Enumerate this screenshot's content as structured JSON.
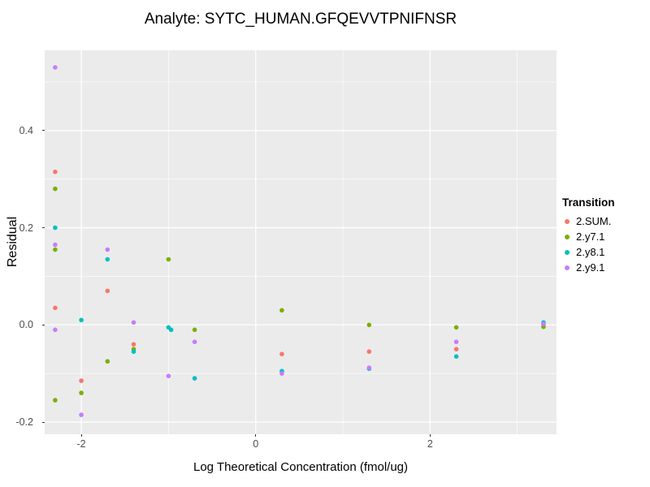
{
  "chart_data": {
    "type": "scatter",
    "title": "Analyte: SYTC_HUMAN.GFQEVVTPNIFNSR",
    "xlabel": "Log Theoretical Concentration (fmol/ug)",
    "ylabel": "Residual",
    "legend_title": "Transition",
    "legend_position": "right",
    "grid": true,
    "panel_bg": "#EBEBEB",
    "grid_color": "#FFFFFF",
    "tick_color": "#333333",
    "tick_label_color": "#4D4D4D",
    "xlim": [
      -2.42,
      3.45
    ],
    "ylim": [
      -0.225,
      0.565
    ],
    "x_ticks": [
      -2,
      0,
      2
    ],
    "x_tick_labels": [
      "-2",
      "0",
      "2"
    ],
    "x_minor_ticks": [
      -1,
      1,
      3
    ],
    "y_ticks": [
      -0.2,
      0.0,
      0.2,
      0.4
    ],
    "y_tick_labels": [
      "-0.2",
      "0.0",
      "0.2",
      "0.4"
    ],
    "y_minor_ticks": [
      -0.1,
      0.1,
      0.3,
      0.5
    ],
    "series": [
      {
        "name": "2.SUM.",
        "color": "#F8766D",
        "points": [
          [
            -2.3,
            0.315
          ],
          [
            -2.3,
            0.035
          ],
          [
            -2.0,
            -0.115
          ],
          [
            -1.7,
            0.07
          ],
          [
            -1.4,
            -0.04
          ],
          [
            0.3,
            -0.06
          ],
          [
            1.3,
            -0.055
          ],
          [
            2.3,
            -0.05
          ],
          [
            3.3,
            0.0
          ]
        ]
      },
      {
        "name": "2.y7.1",
        "color": "#7CAE00",
        "points": [
          [
            -2.3,
            0.28
          ],
          [
            -2.3,
            0.155
          ],
          [
            -2.3,
            -0.155
          ],
          [
            -2.0,
            -0.14
          ],
          [
            -1.7,
            -0.075
          ],
          [
            -1.4,
            -0.05
          ],
          [
            -1.0,
            0.135
          ],
          [
            -0.7,
            -0.01
          ],
          [
            0.3,
            0.03
          ],
          [
            1.3,
            0.0
          ],
          [
            2.3,
            -0.005
          ],
          [
            3.3,
            -0.004
          ]
        ]
      },
      {
        "name": "2.y8.1",
        "color": "#00BFC4",
        "points": [
          [
            -2.3,
            0.2
          ],
          [
            -2.0,
            0.01
          ],
          [
            -1.7,
            0.135
          ],
          [
            -1.4,
            -0.055
          ],
          [
            -1.0,
            -0.005
          ],
          [
            -0.97,
            -0.01
          ],
          [
            -0.7,
            -0.11
          ],
          [
            0.3,
            -0.095
          ],
          [
            1.3,
            -0.09
          ],
          [
            2.3,
            -0.065
          ],
          [
            3.3,
            0.005
          ]
        ]
      },
      {
        "name": "2.y9.1",
        "color": "#C77CFF",
        "points": [
          [
            -2.3,
            0.53
          ],
          [
            -2.3,
            0.165
          ],
          [
            -2.3,
            -0.01
          ],
          [
            -2.0,
            -0.185
          ],
          [
            -1.7,
            0.155
          ],
          [
            -1.4,
            0.005
          ],
          [
            -1.0,
            -0.105
          ],
          [
            -0.7,
            -0.035
          ],
          [
            0.3,
            -0.1
          ],
          [
            1.3,
            -0.088
          ],
          [
            2.3,
            -0.035
          ],
          [
            3.3,
            0.002
          ]
        ]
      }
    ]
  }
}
